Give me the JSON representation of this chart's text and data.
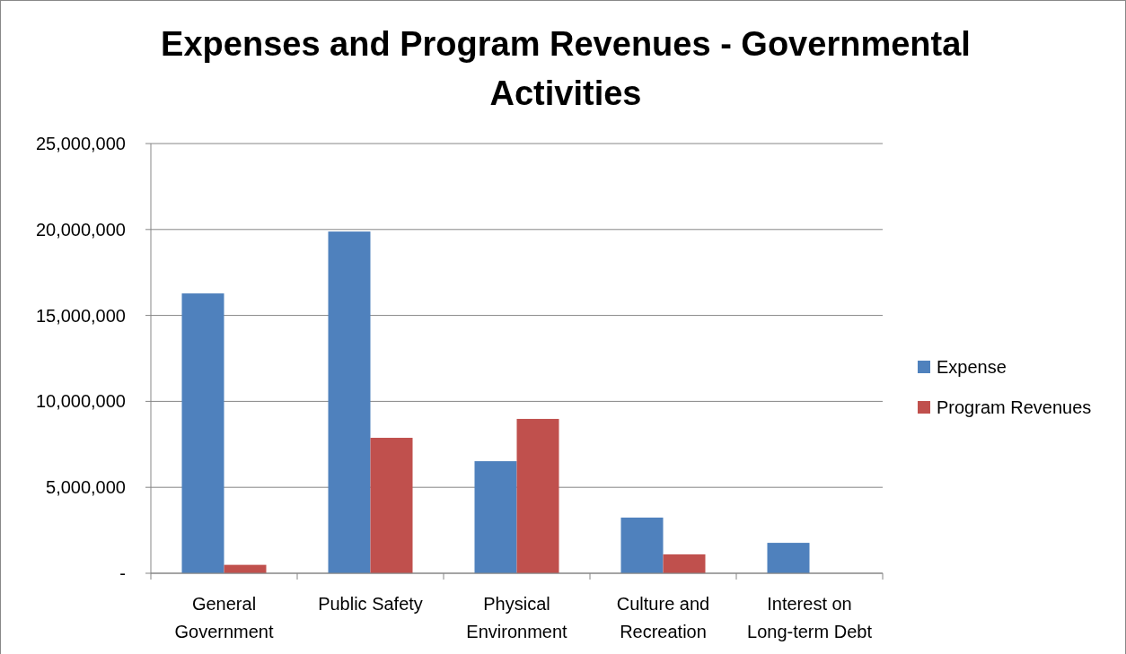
{
  "chart_data": {
    "type": "bar",
    "title": "Expenses and Program Revenues - Governmental Activities",
    "categories": [
      "General Government",
      "Public Safety",
      "Physical Environment",
      "Culture and Recreation",
      "Interest on Long-term Debt"
    ],
    "series": [
      {
        "name": "Expense",
        "color": "#4f81bd",
        "values": [
          16280000,
          19880000,
          6520000,
          3240000,
          1770000
        ]
      },
      {
        "name": "Program Revenues",
        "color": "#c0504d",
        "values": [
          490000,
          7880000,
          8980000,
          1100000,
          0
        ]
      }
    ],
    "ylim": [
      0,
      25000000
    ],
    "yticks": [
      {
        "value": 0,
        "label": "-"
      },
      {
        "value": 5000000,
        "label": "5,000,000"
      },
      {
        "value": 10000000,
        "label": "10,000,000"
      },
      {
        "value": 15000000,
        "label": "15,000,000"
      },
      {
        "value": 20000000,
        "label": "20,000,000"
      },
      {
        "value": 25000000,
        "label": "25,000,000"
      }
    ],
    "grid": "y",
    "legend": "right"
  }
}
